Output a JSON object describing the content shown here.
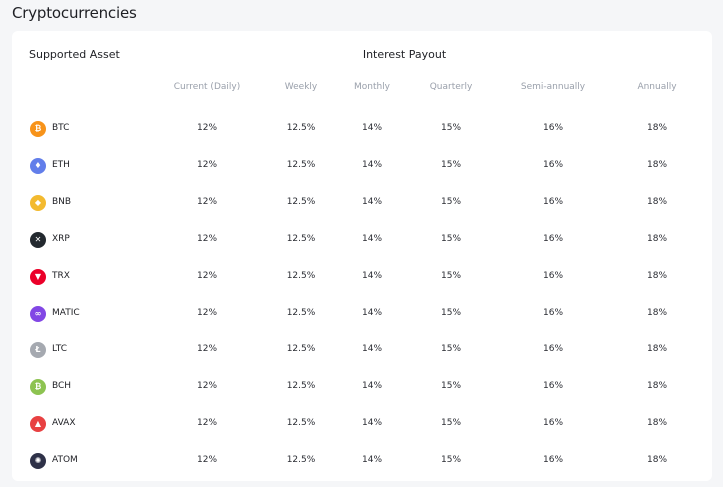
{
  "page_title": "Cryptocurrencies",
  "table": {
    "asset_heading": "Supported Asset",
    "payout_heading": "Interest Payout",
    "columns": [
      "Current (Daily)",
      "Weekly",
      "Monthly",
      "Quarterly",
      "Semi-annually",
      "Annually"
    ],
    "rows": [
      {
        "symbol": "BTC",
        "icon": "btc-icon",
        "color": "#f7931a",
        "glyph": "₿",
        "rates": [
          "12%",
          "12.5%",
          "14%",
          "15%",
          "16%",
          "18%"
        ]
      },
      {
        "symbol": "ETH",
        "icon": "eth-icon",
        "color": "#627eea",
        "glyph": "♦",
        "rates": [
          "12%",
          "12.5%",
          "14%",
          "15%",
          "16%",
          "18%"
        ]
      },
      {
        "symbol": "BNB",
        "icon": "bnb-icon",
        "color": "#f3ba2f",
        "glyph": "◆",
        "rates": [
          "12%",
          "12.5%",
          "14%",
          "15%",
          "16%",
          "18%"
        ]
      },
      {
        "symbol": "XRP",
        "icon": "xrp-icon",
        "color": "#23292f",
        "glyph": "✕",
        "rates": [
          "12%",
          "12.5%",
          "14%",
          "15%",
          "16%",
          "18%"
        ]
      },
      {
        "symbol": "TRX",
        "icon": "trx-icon",
        "color": "#eb0029",
        "glyph": "▼",
        "rates": [
          "12%",
          "12.5%",
          "14%",
          "15%",
          "16%",
          "18%"
        ]
      },
      {
        "symbol": "MATIC",
        "icon": "matic-icon",
        "color": "#8247e5",
        "glyph": "∞",
        "rates": [
          "12%",
          "12.5%",
          "14%",
          "15%",
          "16%",
          "18%"
        ]
      },
      {
        "symbol": "LTC",
        "icon": "ltc-icon",
        "color": "#a5a9b0",
        "glyph": "Ł",
        "rates": [
          "12%",
          "12.5%",
          "14%",
          "15%",
          "16%",
          "18%"
        ]
      },
      {
        "symbol": "BCH",
        "icon": "bch-icon",
        "color": "#8dc351",
        "glyph": "₿",
        "rates": [
          "12%",
          "12.5%",
          "14%",
          "15%",
          "16%",
          "18%"
        ]
      },
      {
        "symbol": "AVAX",
        "icon": "avax-icon",
        "color": "#e84142",
        "glyph": "▲",
        "rates": [
          "12%",
          "12.5%",
          "14%",
          "15%",
          "16%",
          "18%"
        ]
      },
      {
        "symbol": "ATOM",
        "icon": "atom-icon",
        "color": "#2e3148",
        "glyph": "✺",
        "rates": [
          "12%",
          "12.5%",
          "14%",
          "15%",
          "16%",
          "18%"
        ]
      }
    ]
  }
}
